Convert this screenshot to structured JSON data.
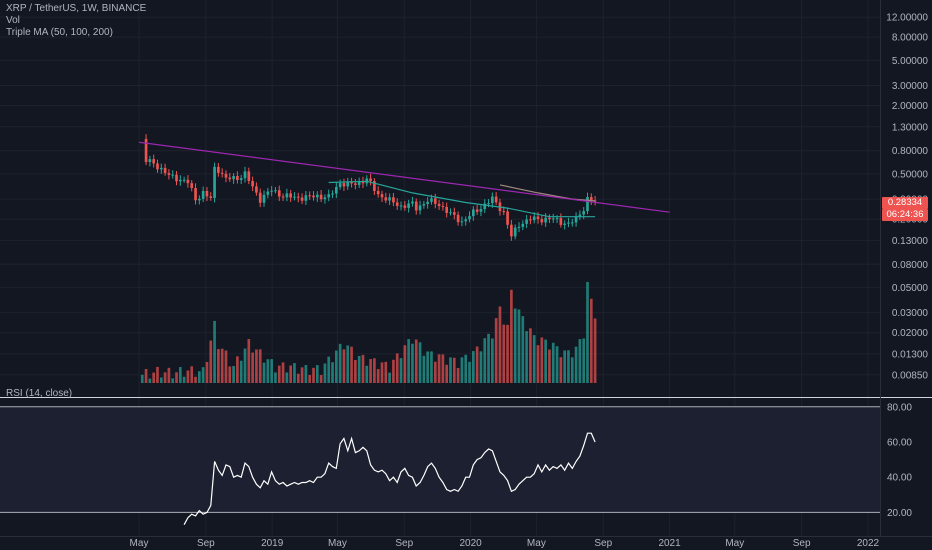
{
  "header": {
    "symbol": "XRP / TetherUS, 1W, BINANCE",
    "volume_label": "Vol",
    "ma_label": "Triple MA (50, 100, 200)",
    "rsi_label": "RSI (14, close)"
  },
  "price_badge": {
    "price": "0.28334",
    "countdown": "06:24:36",
    "color": "#ef5350"
  },
  "colors": {
    "background": "#131722",
    "up": "#26a69a",
    "down": "#ef5350",
    "trendline": "#9c27b0",
    "ma50": "#a1887f",
    "ma100": "#26a69a",
    "rsi_line": "#ffffff",
    "text": "#b2b5be",
    "separator": "#d1d4dc"
  },
  "chart_data": [
    {
      "type": "candlestick",
      "title": "XRP / TetherUS, 1W, BINANCE",
      "scale": "log",
      "ylim": [
        0.0072,
        17
      ],
      "y_ticks": [
        "12.00000",
        "8.00000",
        "5.00000",
        "3.00000",
        "2.00000",
        "1.30000",
        "0.80000",
        "0.50000",
        "0.30000",
        "0.20000",
        "0.13000",
        "0.08000",
        "0.05000",
        "0.03000",
        "0.02000",
        "0.01300",
        "0.00850"
      ],
      "x_ticks": [
        "May",
        "Sep",
        "2019",
        "May",
        "Sep",
        "2020",
        "May",
        "Sep",
        "2021",
        "May",
        "Sep",
        "2022"
      ],
      "x_tick_dates": [
        "2018-05-01",
        "2018-09-01",
        "2019-01-01",
        "2019-05-01",
        "2019-09-01",
        "2020-01-01",
        "2020-05-01",
        "2020-09-01",
        "2021-01-01",
        "2021-05-01",
        "2021-09-01",
        "2022-01-01"
      ],
      "price_anchors": [
        [
          "2018-05-07",
          1.0
        ],
        [
          "2018-05-14",
          0.65
        ],
        [
          "2018-05-28",
          0.62
        ],
        [
          "2018-06-11",
          0.55
        ],
        [
          "2018-06-25",
          0.48
        ],
        [
          "2018-07-09",
          0.46
        ],
        [
          "2018-07-30",
          0.42
        ],
        [
          "2018-08-13",
          0.3
        ],
        [
          "2018-08-27",
          0.34
        ],
        [
          "2018-09-10",
          0.3
        ],
        [
          "2018-09-17",
          0.56
        ],
        [
          "2018-09-24",
          0.55
        ],
        [
          "2018-10-08",
          0.45
        ],
        [
          "2018-10-29",
          0.46
        ],
        [
          "2018-11-12",
          0.5
        ],
        [
          "2018-11-26",
          0.38
        ],
        [
          "2018-12-10",
          0.3
        ],
        [
          "2018-12-31",
          0.36
        ],
        [
          "2019-01-21",
          0.32
        ],
        [
          "2019-02-11",
          0.31
        ],
        [
          "2019-03-04",
          0.31
        ],
        [
          "2019-03-25",
          0.32
        ],
        [
          "2019-04-15",
          0.31
        ],
        [
          "2019-05-06",
          0.42
        ],
        [
          "2019-05-20",
          0.4
        ],
        [
          "2019-06-03",
          0.41
        ],
        [
          "2019-06-24",
          0.45
        ],
        [
          "2019-07-15",
          0.33
        ],
        [
          "2019-08-05",
          0.29
        ],
        [
          "2019-08-26",
          0.26
        ],
        [
          "2019-09-16",
          0.27
        ],
        [
          "2019-09-23",
          0.25
        ],
        [
          "2019-10-14",
          0.29
        ],
        [
          "2019-11-04",
          0.27
        ],
        [
          "2019-11-25",
          0.22
        ],
        [
          "2019-12-16",
          0.19
        ],
        [
          "2020-01-13",
          0.24
        ],
        [
          "2020-02-10",
          0.3
        ],
        [
          "2020-03-02",
          0.23
        ],
        [
          "2020-03-16",
          0.14
        ],
        [
          "2020-03-30",
          0.18
        ],
        [
          "2020-04-20",
          0.2
        ],
        [
          "2020-05-11",
          0.2
        ],
        [
          "2020-06-01",
          0.2
        ],
        [
          "2020-06-29",
          0.18
        ],
        [
          "2020-07-13",
          0.2
        ],
        [
          "2020-07-27",
          0.25
        ],
        [
          "2020-08-03",
          0.3
        ],
        [
          "2020-08-17",
          0.283
        ]
      ],
      "trendline": {
        "from": [
          "2018-05-01",
          0.95
        ],
        "to": [
          "2021-01-01",
          0.23
        ]
      },
      "moving_averages": [
        {
          "name": "MA 50",
          "points": [
            [
              "2019-04-15",
              0.42
            ],
            [
              "2019-06-24",
              0.43
            ],
            [
              "2019-09-16",
              0.34
            ],
            [
              "2019-12-23",
              0.28
            ],
            [
              "2020-03-09",
              0.25
            ],
            [
              "2020-05-25",
              0.21
            ],
            [
              "2020-08-17",
              0.21
            ]
          ]
        },
        {
          "name": "MA 100",
          "points": [
            [
              "2020-02-24",
              0.4
            ],
            [
              "2020-05-04",
              0.34
            ],
            [
              "2020-07-06",
              0.3
            ],
            [
              "2020-08-17",
              0.29
            ]
          ]
        }
      ],
      "current_price": 0.28334,
      "countdown": "06:24:36"
    },
    {
      "type": "bar",
      "title": "Vol",
      "values": [
        [
          "2018-05-07",
          0.0085
        ],
        [
          "2018-06-04",
          0.009
        ],
        [
          "2018-07-02",
          0.0088
        ],
        [
          "2018-07-30",
          0.0092
        ],
        [
          "2018-08-27",
          0.009
        ],
        [
          "2018-09-17",
          0.023
        ],
        [
          "2018-09-24",
          0.016
        ],
        [
          "2018-10-22",
          0.01
        ],
        [
          "2018-11-19",
          0.016
        ],
        [
          "2018-12-10",
          0.013
        ],
        [
          "2019-01-07",
          0.01
        ],
        [
          "2019-02-04",
          0.01
        ],
        [
          "2019-03-04",
          0.0095
        ],
        [
          "2019-04-01",
          0.0095
        ],
        [
          "2019-05-13",
          0.016
        ],
        [
          "2019-06-10",
          0.012
        ],
        [
          "2019-07-08",
          0.011
        ],
        [
          "2019-08-05",
          0.01
        ],
        [
          "2019-09-16",
          0.018
        ],
        [
          "2019-10-14",
          0.013
        ],
        [
          "2019-11-11",
          0.012
        ],
        [
          "2019-12-09",
          0.011
        ],
        [
          "2020-01-06",
          0.013
        ],
        [
          "2020-02-10",
          0.02
        ],
        [
          "2020-02-24",
          0.032
        ],
        [
          "2020-03-09",
          0.022
        ],
        [
          "2020-03-16",
          0.045
        ],
        [
          "2020-03-30",
          0.03
        ],
        [
          "2020-04-27",
          0.018
        ],
        [
          "2020-05-25",
          0.016
        ],
        [
          "2020-06-22",
          0.013
        ],
        [
          "2020-07-13",
          0.014
        ],
        [
          "2020-07-27",
          0.02
        ],
        [
          "2020-08-03",
          0.052
        ],
        [
          "2020-08-10",
          0.038
        ],
        [
          "2020-08-17",
          0.03
        ]
      ]
    },
    {
      "type": "line",
      "title": "RSI (14, close)",
      "ylim": [
        10,
        85
      ],
      "y_ticks": [
        "80.00",
        "60.00",
        "40.00",
        "20.00"
      ],
      "reference_lines": [
        20,
        80
      ],
      "points": [
        [
          "2018-07-23",
          13
        ],
        [
          "2018-07-30",
          17
        ],
        [
          "2018-08-06",
          19
        ],
        [
          "2018-08-13",
          18
        ],
        [
          "2018-08-20",
          21
        ],
        [
          "2018-08-27",
          19
        ],
        [
          "2018-09-03",
          20
        ],
        [
          "2018-09-10",
          24
        ],
        [
          "2018-09-17",
          49
        ],
        [
          "2018-09-24",
          44
        ],
        [
          "2018-10-01",
          41
        ],
        [
          "2018-10-08",
          47
        ],
        [
          "2018-10-15",
          46
        ],
        [
          "2018-10-22",
          40
        ],
        [
          "2018-10-29",
          41
        ],
        [
          "2018-11-05",
          40
        ],
        [
          "2018-11-12",
          48
        ],
        [
          "2018-11-19",
          46
        ],
        [
          "2018-11-26",
          40
        ],
        [
          "2018-12-03",
          36
        ],
        [
          "2018-12-10",
          34
        ],
        [
          "2018-12-17",
          38
        ],
        [
          "2018-12-24",
          36
        ],
        [
          "2018-12-31",
          43
        ],
        [
          "2019-01-07",
          38
        ],
        [
          "2019-01-14",
          36
        ],
        [
          "2019-01-21",
          37
        ],
        [
          "2019-01-28",
          35
        ],
        [
          "2019-02-04",
          36
        ],
        [
          "2019-02-11",
          37
        ],
        [
          "2019-02-18",
          36
        ],
        [
          "2019-02-25",
          37
        ],
        [
          "2019-03-04",
          37
        ],
        [
          "2019-03-11",
          38
        ],
        [
          "2019-03-18",
          37
        ],
        [
          "2019-03-25",
          40
        ],
        [
          "2019-04-01",
          40
        ],
        [
          "2019-04-08",
          42
        ],
        [
          "2019-04-15",
          48
        ],
        [
          "2019-04-22",
          46
        ],
        [
          "2019-04-29",
          45
        ],
        [
          "2019-05-06",
          59
        ],
        [
          "2019-05-13",
          62
        ],
        [
          "2019-05-20",
          55
        ],
        [
          "2019-05-27",
          62
        ],
        [
          "2019-06-03",
          54
        ],
        [
          "2019-06-10",
          55
        ],
        [
          "2019-06-17",
          57
        ],
        [
          "2019-06-24",
          55
        ],
        [
          "2019-07-01",
          47
        ],
        [
          "2019-07-08",
          44
        ],
        [
          "2019-07-15",
          43
        ],
        [
          "2019-07-22",
          44
        ],
        [
          "2019-07-29",
          42
        ],
        [
          "2019-08-05",
          38
        ],
        [
          "2019-08-12",
          40
        ],
        [
          "2019-08-19",
          37
        ],
        [
          "2019-08-26",
          43
        ],
        [
          "2019-09-02",
          45
        ],
        [
          "2019-09-09",
          41
        ],
        [
          "2019-09-16",
          40
        ],
        [
          "2019-09-23",
          35
        ],
        [
          "2019-09-30",
          37
        ],
        [
          "2019-10-07",
          41
        ],
        [
          "2019-10-14",
          46
        ],
        [
          "2019-10-21",
          48
        ],
        [
          "2019-10-28",
          45
        ],
        [
          "2019-11-04",
          40
        ],
        [
          "2019-11-11",
          37
        ],
        [
          "2019-11-18",
          33
        ],
        [
          "2019-11-25",
          32
        ],
        [
          "2019-12-02",
          33
        ],
        [
          "2019-12-09",
          32
        ],
        [
          "2019-12-16",
          35
        ],
        [
          "2019-12-23",
          40
        ],
        [
          "2019-12-30",
          40
        ],
        [
          "2020-01-06",
          47
        ],
        [
          "2020-01-13",
          50
        ],
        [
          "2020-01-20",
          51
        ],
        [
          "2020-01-27",
          54
        ],
        [
          "2020-02-03",
          56
        ],
        [
          "2020-02-10",
          55
        ],
        [
          "2020-02-17",
          49
        ],
        [
          "2020-02-24",
          43
        ],
        [
          "2020-03-02",
          41
        ],
        [
          "2020-03-09",
          38
        ],
        [
          "2020-03-16",
          32
        ],
        [
          "2020-03-23",
          33
        ],
        [
          "2020-03-30",
          36
        ],
        [
          "2020-04-06",
          38
        ],
        [
          "2020-04-13",
          40
        ],
        [
          "2020-04-20",
          40
        ],
        [
          "2020-04-27",
          42
        ],
        [
          "2020-05-04",
          47
        ],
        [
          "2020-05-11",
          43
        ],
        [
          "2020-05-18",
          47
        ],
        [
          "2020-05-25",
          44
        ],
        [
          "2020-06-01",
          46
        ],
        [
          "2020-06-08",
          45
        ],
        [
          "2020-06-15",
          47
        ],
        [
          "2020-06-22",
          44
        ],
        [
          "2020-06-29",
          48
        ],
        [
          "2020-07-06",
          45
        ],
        [
          "2020-07-13",
          49
        ],
        [
          "2020-07-20",
          52
        ],
        [
          "2020-07-27",
          58
        ],
        [
          "2020-08-03",
          65
        ],
        [
          "2020-08-10",
          65
        ],
        [
          "2020-08-17",
          60
        ]
      ]
    }
  ]
}
